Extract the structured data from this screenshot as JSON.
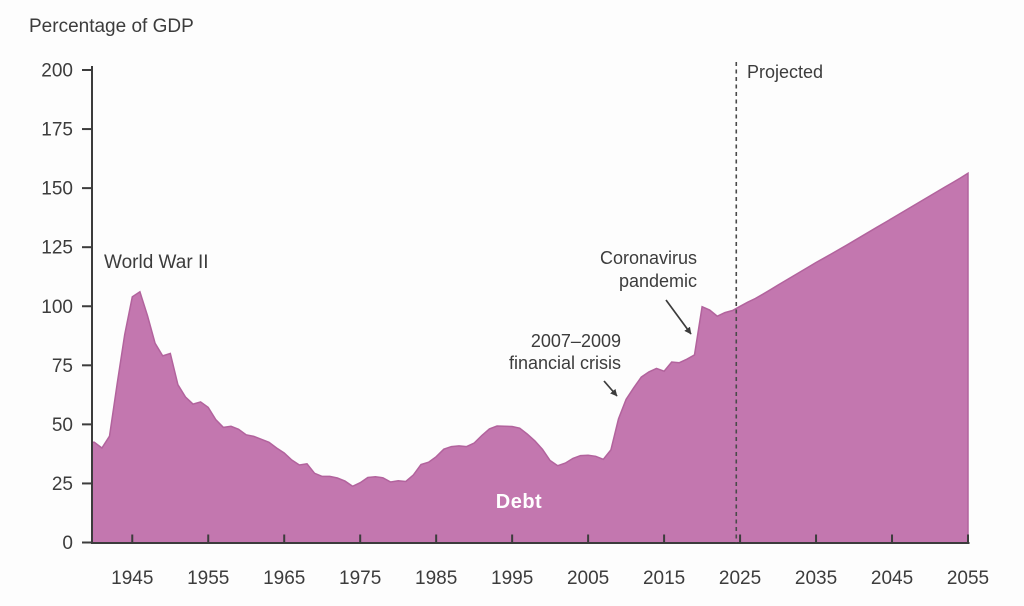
{
  "colors": {
    "area_fill": "#c377af",
    "area_edge": "#b2639d",
    "axis": "#3c3c3c",
    "text": "#3c3c3c",
    "divider": "#4a4a4a",
    "debt_label_text": "#ffffff"
  },
  "chart_data": {
    "type": "area",
    "title": "",
    "ylabel": "Percentage of GDP",
    "xlabel": "",
    "xlim": [
      1939.7,
      2055
    ],
    "ylim": [
      0,
      200
    ],
    "grid": false,
    "legend": false,
    "x_ticks": [
      1945,
      1955,
      1965,
      1975,
      1985,
      1995,
      2005,
      2015,
      2025,
      2035,
      2045,
      2055
    ],
    "y_ticks": [
      0,
      25,
      50,
      75,
      100,
      125,
      150,
      175,
      200
    ],
    "projection_start": 2025,
    "projected_label": "Projected",
    "annotations": [
      {
        "id": "wwii",
        "text": "World War II",
        "year": 1946,
        "value": 106
      },
      {
        "id": "financial-crisis",
        "text": "2007–2009 financial crisis",
        "year": 2009,
        "value": 62
      },
      {
        "id": "pandemic",
        "text": "Coronavirus pandemic",
        "year": 2020,
        "value": 95
      }
    ],
    "series": [
      {
        "name": "Debt",
        "x": [
          1939.7,
          1940,
          1941,
          1942,
          1943,
          1944,
          1945,
          1946,
          1947,
          1948,
          1949,
          1950,
          1951,
          1952,
          1953,
          1954,
          1955,
          1956,
          1957,
          1958,
          1959,
          1960,
          1961,
          1962,
          1963,
          1964,
          1965,
          1966,
          1967,
          1968,
          1969,
          1970,
          1971,
          1972,
          1973,
          1974,
          1975,
          1976,
          1977,
          1978,
          1979,
          1980,
          1981,
          1982,
          1983,
          1984,
          1985,
          1986,
          1987,
          1988,
          1989,
          1990,
          1991,
          1992,
          1993,
          1994,
          1995,
          1996,
          1997,
          1998,
          1999,
          2000,
          2001,
          2002,
          2003,
          2004,
          2005,
          2006,
          2007,
          2008,
          2009,
          2010,
          2011,
          2012,
          2013,
          2014,
          2015,
          2016,
          2017,
          2018,
          2019,
          2020,
          2021,
          2022,
          2023,
          2024,
          2025,
          2026,
          2027,
          2028,
          2029,
          2030,
          2031,
          2032,
          2033,
          2034,
          2035,
          2036,
          2037,
          2038,
          2039,
          2040,
          2041,
          2042,
          2043,
          2044,
          2045,
          2046,
          2047,
          2048,
          2049,
          2050,
          2051,
          2052,
          2053,
          2054,
          2055
        ],
        "values": [
          42.4,
          42.4,
          40.0,
          45.0,
          67.0,
          88.0,
          104.0,
          106.1,
          96.0,
          84.3,
          79.0,
          80.0,
          66.8,
          61.6,
          58.6,
          59.5,
          57.2,
          52.0,
          48.7,
          49.2,
          47.9,
          45.6,
          44.9,
          43.7,
          42.4,
          40.0,
          37.9,
          34.9,
          32.8,
          33.3,
          29.3,
          28.0,
          28.0,
          27.3,
          26.0,
          23.8,
          25.3,
          27.5,
          27.8,
          27.4,
          25.6,
          26.1,
          25.8,
          28.6,
          33.0,
          34.0,
          36.3,
          39.5,
          40.6,
          40.9,
          40.6,
          42.1,
          45.3,
          48.1,
          49.3,
          49.2,
          49.1,
          48.4,
          45.9,
          43.0,
          39.4,
          34.7,
          32.5,
          33.6,
          35.6,
          36.8,
          36.9,
          36.5,
          35.2,
          39.2,
          52.3,
          60.6,
          65.5,
          70.0,
          72.2,
          73.7,
          72.5,
          76.4,
          76.1,
          77.6,
          79.4,
          99.8,
          98.4,
          95.8,
          97.3,
          98.2,
          100.0,
          101.7,
          103.3,
          105.1,
          107.0,
          109.0,
          110.9,
          112.8,
          114.7,
          116.6,
          118.5,
          120.3,
          122.1,
          124.0,
          125.8,
          127.7,
          129.6,
          131.5,
          133.4,
          135.3,
          137.2,
          139.1,
          141.0,
          142.9,
          144.8,
          146.7,
          148.6,
          150.5,
          152.4,
          154.3,
          156.3
        ]
      }
    ]
  }
}
